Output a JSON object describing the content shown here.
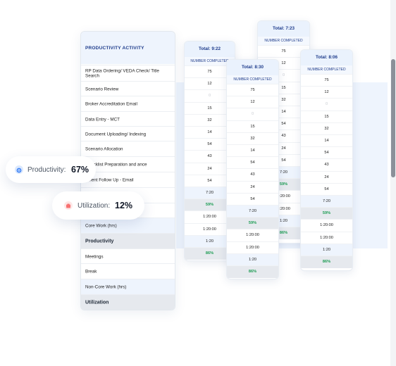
{
  "main": {
    "header": "PRODUCTIVITY ACTIVITY",
    "rows": [
      "RP Data Ordering/ VEDA Check/ Title Search",
      "Scenario Review",
      "Broker Accreditation Email",
      "Data Entry - MCT",
      "Document Uploading/ Indexing",
      "Scenario Allocation",
      "Checklist Preparation and ance",
      "ument Follow Up - Email",
      "one",
      "",
      "Core Work (hrs)",
      "Productivity",
      "Meetings",
      "Break",
      "Non-Core Work (hrs)",
      "Utilization"
    ]
  },
  "columns": [
    {
      "total": "Total: 9:22",
      "sub": "NUMBER COMPLETED",
      "values": [
        "75",
        "12",
        "0",
        "15",
        "32",
        "14",
        "54",
        "43",
        "24",
        "54",
        "7:20",
        "59%",
        "1:20:00",
        "1:20:00",
        "1:20",
        "86%"
      ]
    },
    {
      "total": "Total: 7:23",
      "sub": "NUMBER COMPLETED",
      "values": [
        "75",
        "12",
        "0",
        "15",
        "32",
        "14",
        "54",
        "43",
        "24",
        "54",
        "7:20",
        "59%",
        "1:20:00",
        "1:20:00",
        "1:20",
        "86%"
      ]
    },
    {
      "total": "Total: 8:30",
      "sub": "NUMBER COMPLETED",
      "values": [
        "75",
        "12",
        "0",
        "15",
        "32",
        "14",
        "54",
        "43",
        "24",
        "54",
        "7:20",
        "59%",
        "1:20:00",
        "1:20:00",
        "1:20",
        "86%"
      ]
    },
    {
      "total": "Total: 8:06",
      "sub": "NUMBER COMPLETED",
      "values": [
        "75",
        "12",
        "0",
        "15",
        "32",
        "14",
        "54",
        "43",
        "24",
        "54",
        "7:20",
        "59%",
        "1:20:00",
        "1:20:00",
        "1:20",
        "86%"
      ]
    }
  ],
  "badges": {
    "productivity": {
      "label": "Productivity:",
      "value": "67%",
      "icon": "gear-icon",
      "color": "#3b82f6"
    },
    "utilization": {
      "label": "Utilization:",
      "value": "12%",
      "icon": "box-icon",
      "color": "#f87171"
    }
  }
}
